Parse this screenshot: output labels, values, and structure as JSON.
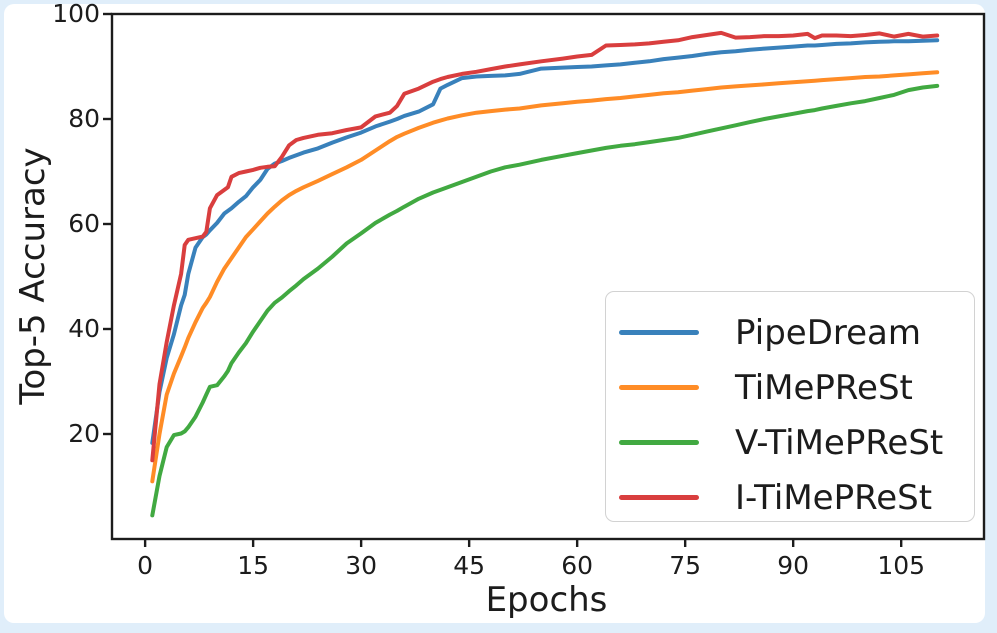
{
  "page": {
    "background_color": "#e0eefa",
    "figure_color": "#ffffff",
    "axis_color": "#1c1c1c"
  },
  "chart_data": {
    "type": "line",
    "title": "",
    "xlabel": "Epochs",
    "ylabel": "Top-5 Accuracy",
    "xlim": [
      -4.6,
      116.5
    ],
    "ylim": [
      0,
      100
    ],
    "x_ticks": [
      0,
      15,
      30,
      45,
      60,
      75,
      90,
      105
    ],
    "y_ticks": [
      20,
      40,
      60,
      80,
      100
    ],
    "grid": false,
    "legend_position": "lower right",
    "epochs": [
      1,
      2,
      3,
      4,
      5,
      5.5,
      6,
      7,
      8,
      8.5,
      9,
      10,
      11,
      11.5,
      12,
      13,
      14,
      15,
      16,
      17,
      18,
      19,
      20,
      21,
      22,
      24,
      26,
      28,
      30,
      32,
      34,
      35,
      36,
      38,
      40,
      41,
      42,
      44,
      46,
      48,
      50,
      52,
      55,
      58,
      60,
      62,
      64,
      66,
      68,
      70,
      72,
      74,
      76,
      78,
      80,
      82,
      84,
      86,
      88,
      90,
      92,
      93,
      94,
      96,
      98,
      100,
      102,
      104,
      106,
      108,
      110
    ],
    "series": [
      {
        "name": "PipeDream",
        "color": "#3981bb",
        "values": [
          18.3,
          28,
          34.5,
          39,
          44.5,
          46.5,
          50.5,
          55.5,
          57.5,
          58,
          58.8,
          60.2,
          62,
          62.5,
          63,
          64.2,
          65.3,
          67,
          68.4,
          70.5,
          71.5,
          72,
          72.6,
          73.1,
          73.6,
          74.4,
          75.5,
          76.5,
          77.4,
          78.6,
          79.5,
          80,
          80.6,
          81.4,
          82.8,
          85.8,
          86.5,
          87.8,
          88.1,
          88.2,
          88.3,
          88.6,
          89.6,
          89.8,
          89.9,
          90,
          90.2,
          90.4,
          90.7,
          91,
          91.4,
          91.7,
          92,
          92.4,
          92.7,
          92.9,
          93.2,
          93.4,
          93.6,
          93.8,
          94,
          94,
          94.1,
          94.3,
          94.4,
          94.6,
          94.7,
          94.8,
          94.8,
          94.9,
          95
        ]
      },
      {
        "name": "TiMePReSt",
        "color": "#ff8c26",
        "values": [
          11,
          20,
          27.5,
          31.5,
          34.8,
          36.5,
          38.3,
          41.3,
          44,
          45,
          46.1,
          49,
          51.5,
          52.5,
          53.5,
          55.5,
          57.5,
          59,
          60.5,
          62,
          63.3,
          64.5,
          65.5,
          66.3,
          67,
          68.2,
          69.5,
          70.8,
          72.2,
          74,
          75.8,
          76.6,
          77.2,
          78.3,
          79.3,
          79.7,
          80.1,
          80.7,
          81.2,
          81.5,
          81.8,
          82,
          82.6,
          83,
          83.3,
          83.5,
          83.8,
          84,
          84.3,
          84.6,
          84.9,
          85.1,
          85.4,
          85.7,
          86,
          86.2,
          86.4,
          86.6,
          86.8,
          87,
          87.2,
          87.3,
          87.4,
          87.6,
          87.8,
          88,
          88.1,
          88.3,
          88.5,
          88.7,
          88.9
        ]
      },
      {
        "name": "V-TiMePReSt",
        "color": "#41a941",
        "values": [
          4.5,
          12,
          17.5,
          19.8,
          20.1,
          20.5,
          21.3,
          23.3,
          26,
          27.5,
          29,
          29.3,
          31,
          32,
          33.5,
          35.5,
          37.3,
          39.5,
          41.5,
          43.5,
          45,
          46,
          47.2,
          48.3,
          49.5,
          51.5,
          53.8,
          56.3,
          58.2,
          60.2,
          61.8,
          62.5,
          63.3,
          64.8,
          66,
          66.5,
          67,
          68,
          69,
          70,
          70.8,
          71.3,
          72.2,
          73,
          73.5,
          74,
          74.5,
          74.9,
          75.2,
          75.6,
          76,
          76.4,
          77,
          77.6,
          78.2,
          78.8,
          79.4,
          80,
          80.5,
          81,
          81.5,
          81.7,
          82,
          82.5,
          83,
          83.4,
          84,
          84.6,
          85.5,
          86,
          86.3
        ]
      },
      {
        "name": "I-TiMePReSt",
        "color": "#d93e3e",
        "values": [
          15,
          29.5,
          37.5,
          44.5,
          50.5,
          56,
          57,
          57.3,
          57.6,
          58.5,
          63,
          65.5,
          66.5,
          67,
          69,
          69.7,
          70,
          70.3,
          70.7,
          70.9,
          71,
          72.8,
          75,
          76,
          76.4,
          77,
          77.3,
          77.9,
          78.4,
          80.5,
          81.2,
          82.5,
          84.8,
          85.8,
          87.1,
          87.6,
          88,
          88.6,
          89,
          89.5,
          90,
          90.4,
          91,
          91.5,
          91.9,
          92.2,
          94,
          94.1,
          94.2,
          94.4,
          94.7,
          95,
          95.6,
          96,
          96.4,
          95.5,
          95.6,
          95.8,
          95.8,
          95.9,
          96.2,
          95.4,
          95.9,
          95.9,
          95.8,
          96,
          96.3,
          95.7,
          96.2,
          95.7,
          95.9
        ]
      }
    ]
  }
}
